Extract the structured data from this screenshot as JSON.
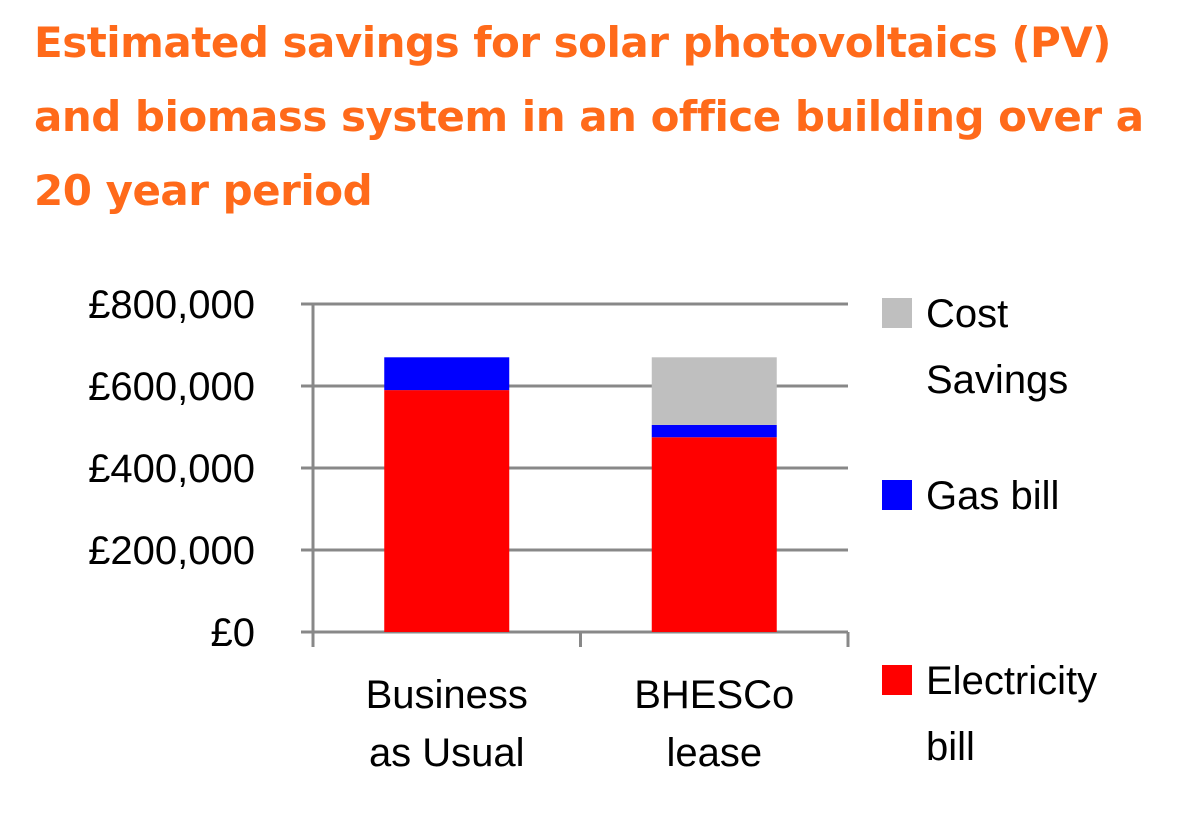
{
  "chart_data": {
    "type": "bar",
    "stacked": true,
    "title": "Estimated savings for solar photovoltaics (PV) and biomass system in an office building over a 20 year period",
    "xlabel": "",
    "ylabel": "",
    "categories": [
      [
        "Business",
        "as Usual"
      ],
      [
        "BHESCo",
        "lease"
      ]
    ],
    "ylim": [
      0,
      800000
    ],
    "yticks": [
      0,
      200000,
      400000,
      600000,
      800000
    ],
    "ytick_labels": [
      "£0",
      "£200,000",
      "£400,000",
      "£600,000",
      "£800,000"
    ],
    "grid": true,
    "legend_position": "right",
    "series": [
      {
        "name": [
          "Electricity",
          "bill"
        ],
        "color": "#ff0000",
        "values": [
          590000,
          475000
        ]
      },
      {
        "name": [
          "Gas bill"
        ],
        "color": "#0000ff",
        "values": [
          80000,
          30000
        ]
      },
      {
        "name": [
          "Cost",
          "Savings"
        ],
        "color": "#bfbfbf",
        "values": [
          0,
          165000
        ]
      }
    ]
  }
}
